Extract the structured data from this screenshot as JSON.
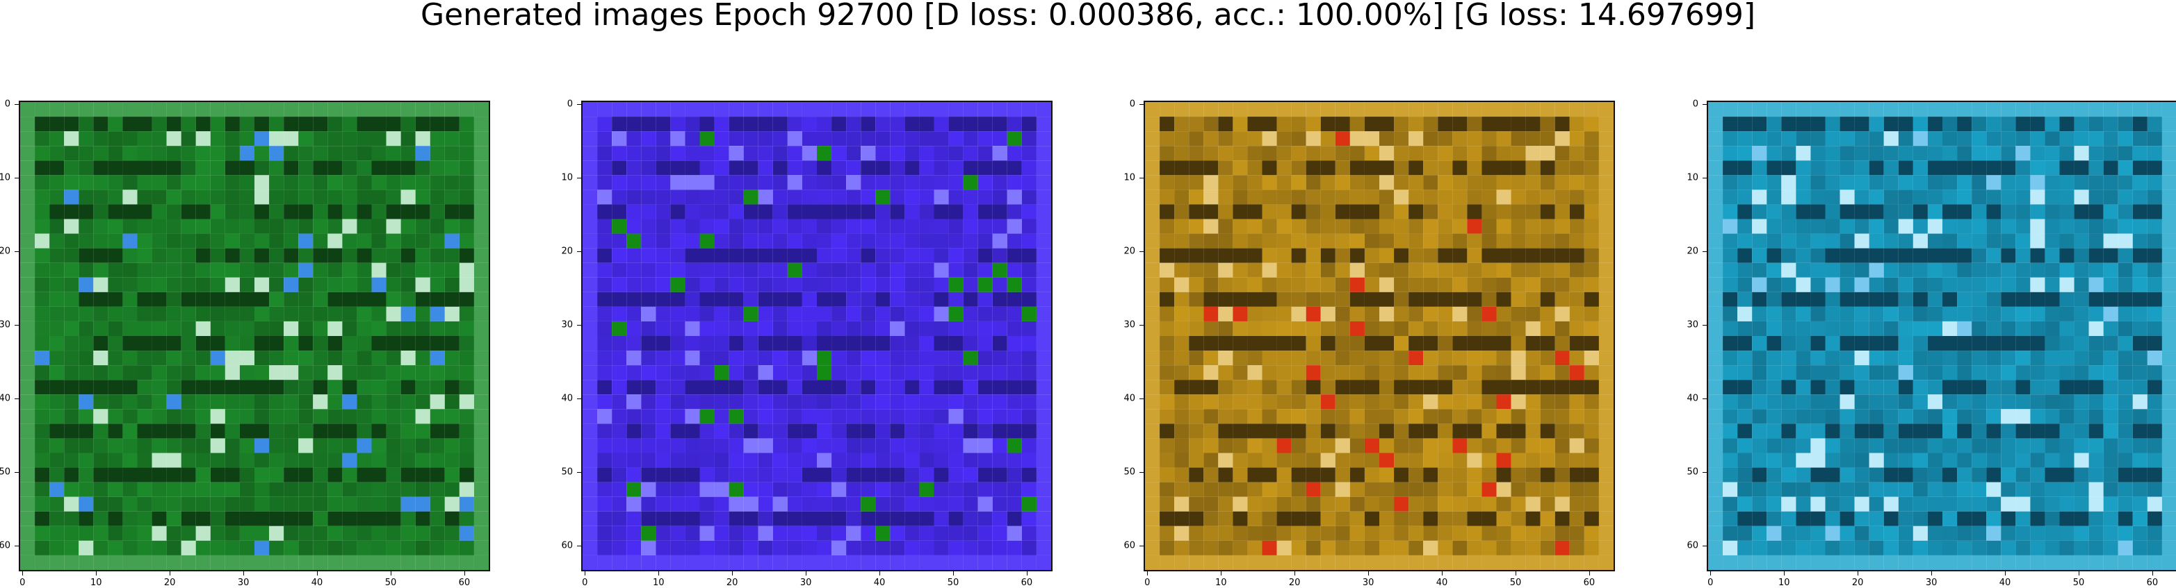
{
  "figure": {
    "title": "Generated images Epoch 92700 [D loss: 0.000386, acc.: 100.00%] [G loss: 14.697699]"
  },
  "colors": {
    "panel1_base": "#1c8a2a",
    "panel2_base": "#4b2cf5",
    "panel3_base": "#c7971a",
    "panel4_base": "#1aa2c7"
  },
  "chart_data": [
    {
      "type": "heatmap",
      "title": "",
      "xlim": [
        0,
        63
      ],
      "ylim": [
        63,
        0
      ],
      "xticks": [
        "0",
        "10",
        "20",
        "30",
        "40",
        "50",
        "60"
      ],
      "yticks": [
        "0",
        "10",
        "20",
        "30",
        "40",
        "50",
        "60"
      ],
      "grid": false,
      "dominant_color": "green"
    },
    {
      "type": "heatmap",
      "title": "",
      "xlim": [
        0,
        63
      ],
      "ylim": [
        63,
        0
      ],
      "xticks": [
        "0",
        "10",
        "20",
        "30",
        "40",
        "50",
        "60"
      ],
      "yticks": [
        "0",
        "10",
        "20",
        "30",
        "40",
        "50",
        "60"
      ],
      "grid": false,
      "dominant_color": "blue"
    },
    {
      "type": "heatmap",
      "title": "",
      "xlim": [
        0,
        63
      ],
      "ylim": [
        63,
        0
      ],
      "xticks": [
        "0",
        "10",
        "20",
        "30",
        "40",
        "50",
        "60"
      ],
      "yticks": [
        "0",
        "10",
        "20",
        "30",
        "40",
        "50",
        "60"
      ],
      "grid": false,
      "dominant_color": "ochre"
    },
    {
      "type": "heatmap",
      "title": "",
      "xlim": [
        0,
        63
      ],
      "ylim": [
        63,
        0
      ],
      "xticks": [
        "0",
        "10",
        "20",
        "30",
        "40",
        "50",
        "60"
      ],
      "yticks": [
        "0",
        "10",
        "20",
        "30",
        "40",
        "50",
        "60"
      ],
      "grid": false,
      "dominant_color": "cyan"
    }
  ]
}
